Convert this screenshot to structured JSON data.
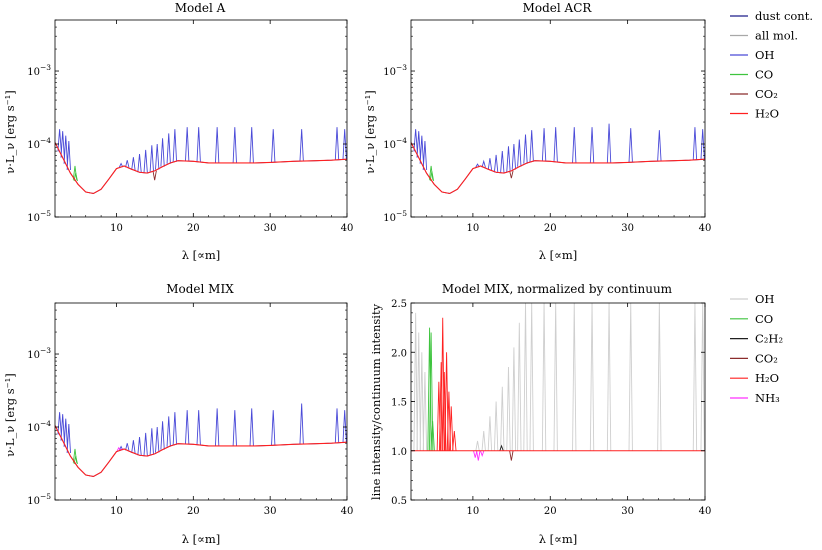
{
  "chart_data": [
    {
      "type": "line",
      "title": "Model A",
      "xlabel": "λ [∝m]",
      "ylabel": "ν·L_ν [erg s⁻¹]",
      "yscale": "log",
      "xlim": [
        2,
        40
      ],
      "ylim": [
        1e-05,
        0.005
      ],
      "x_ticks": [
        10,
        20,
        30,
        40
      ],
      "y_ticks": [
        1e-05,
        0.0001,
        0.001
      ],
      "y_tick_labels": [
        {
          "base": "10",
          "exp": "−5"
        },
        {
          "base": "10",
          "exp": "−4"
        },
        {
          "base": "10",
          "exp": "−3"
        }
      ],
      "series": [
        {
          "name": "dust cont.",
          "color": "#1f1f8a",
          "x": [
            2,
            3,
            4,
            5,
            6,
            7,
            8,
            9,
            10,
            11,
            12,
            13,
            14,
            15,
            16,
            17,
            18,
            20,
            22,
            25,
            28,
            30,
            33,
            36,
            38,
            40
          ],
          "y": [
            0.000105,
            6.5e-05,
            4e-05,
            2.8e-05,
            2.2e-05,
            2.1e-05,
            2.4e-05,
            3.3e-05,
            4.6e-05,
            5e-05,
            4.5e-05,
            4.1e-05,
            4e-05,
            4.3e-05,
            4.9e-05,
            5.5e-05,
            5.9e-05,
            5.8e-05,
            5.5e-05,
            5.5e-05,
            5.5e-05,
            5.6e-05,
            5.8e-05,
            5.9e-05,
            6e-05,
            6.2e-05
          ]
        },
        {
          "name": "all mol.",
          "color": "#a8a8a8",
          "x": [],
          "y": []
        },
        {
          "name": "OH",
          "color": "#4a4ad8",
          "peaks_x": [
            2.6,
            3.0,
            3.4,
            3.8,
            10.6,
            11.4,
            12.2,
            13.0,
            13.8,
            14.6,
            15.3,
            16.0,
            16.8,
            17.6,
            19.2,
            20.7,
            23.1,
            25.4,
            27.6,
            30.4,
            34.1,
            38.7,
            39.7
          ],
          "peaks_y": [
            0.00016,
            0.00015,
            0.00013,
            0.00011,
            5.4e-05,
            6e-05,
            6.6e-05,
            7.3e-05,
            8.3e-05,
            9.6e-05,
            0.0001,
            0.00012,
            0.00014,
            0.00016,
            0.00017,
            0.00017,
            0.00017,
            0.00017,
            0.00017,
            0.00016,
            0.00016,
            0.00017,
            0.00016
          ]
        },
        {
          "name": "CO",
          "color": "#3ec43e",
          "peaks_x": [
            4.6,
            4.7
          ],
          "peaks_y": [
            5e-05,
            4e-05
          ]
        },
        {
          "name": "CO₂",
          "color": "#8b2c2c",
          "peaks_x": [
            14.97
          ],
          "peaks_y": [
            3.2e-05
          ]
        },
        {
          "name": "H₂O",
          "color": "#ff2020",
          "x": [
            2,
            3,
            4,
            5,
            6,
            7,
            8,
            9,
            10,
            11,
            12,
            13,
            14,
            15,
            16,
            17,
            18,
            20,
            22,
            25,
            28,
            30,
            33,
            36,
            38,
            40
          ],
          "y": [
            0.000105,
            6.5e-05,
            4e-05,
            2.8e-05,
            2.2e-05,
            2.1e-05,
            2.4e-05,
            3.3e-05,
            4.6e-05,
            5e-05,
            4.5e-05,
            4.1e-05,
            4e-05,
            4.3e-05,
            4.9e-05,
            5.5e-05,
            5.9e-05,
            5.8e-05,
            5.5e-05,
            5.5e-05,
            5.5e-05,
            5.6e-05,
            5.8e-05,
            5.9e-05,
            6e-05,
            6.2e-05
          ]
        }
      ]
    },
    {
      "type": "line",
      "title": "Model ACR",
      "xlabel": "λ [∝m]",
      "ylabel": "ν·L_ν [erg s⁻¹]",
      "yscale": "log",
      "xlim": [
        2,
        40
      ],
      "ylim": [
        1e-05,
        0.005
      ],
      "x_ticks": [
        10,
        20,
        30,
        40
      ],
      "y_ticks": [
        1e-05,
        0.0001,
        0.001
      ],
      "y_tick_labels": [
        {
          "base": "10",
          "exp": "−5"
        },
        {
          "base": "10",
          "exp": "−4"
        },
        {
          "base": "10",
          "exp": "−3"
        }
      ],
      "series": [
        {
          "name": "dust cont.",
          "color": "#1f1f8a",
          "x": [
            2,
            3,
            4,
            5,
            6,
            7,
            8,
            9,
            10,
            11,
            12,
            13,
            14,
            15,
            16,
            17,
            18,
            20,
            22,
            25,
            28,
            30,
            33,
            36,
            38,
            40
          ],
          "y": [
            0.000105,
            6.5e-05,
            4e-05,
            2.8e-05,
            2.2e-05,
            2.1e-05,
            2.4e-05,
            3.3e-05,
            4.6e-05,
            5e-05,
            4.5e-05,
            4.1e-05,
            4e-05,
            4.3e-05,
            4.9e-05,
            5.5e-05,
            5.9e-05,
            5.8e-05,
            5.5e-05,
            5.5e-05,
            5.5e-05,
            5.6e-05,
            5.8e-05,
            5.9e-05,
            6e-05,
            6.2e-05
          ]
        },
        {
          "name": "OH",
          "color": "#4a4ad8",
          "peaks_x": [
            2.6,
            3.0,
            3.4,
            3.8,
            10.6,
            11.4,
            12.2,
            13.0,
            13.8,
            14.6,
            15.3,
            16.0,
            16.8,
            17.6,
            19.2,
            20.7,
            23.1,
            25.4,
            27.6,
            30.4,
            34.1,
            38.7,
            39.7
          ],
          "peaks_y": [
            0.00016,
            0.00015,
            0.00013,
            0.00011,
            5.3e-05,
            5.8e-05,
            6.4e-05,
            7.1e-05,
            8e-05,
            9.3e-05,
            0.0001,
            0.000115,
            0.000135,
            0.000155,
            0.000165,
            0.00017,
            0.00017,
            0.00017,
            0.00019,
            0.000165,
            0.000155,
            0.00017,
            0.00016
          ]
        },
        {
          "name": "CO",
          "color": "#3ec43e",
          "peaks_x": [
            4.6,
            4.7
          ],
          "peaks_y": [
            5e-05,
            4.2e-05
          ]
        },
        {
          "name": "CO₂",
          "color": "#8b2c2c",
          "peaks_x": [
            14.97
          ],
          "peaks_y": [
            3.4e-05
          ]
        },
        {
          "name": "H₂O",
          "color": "#ff2020",
          "x": [
            2,
            3,
            4,
            5,
            6,
            7,
            8,
            9,
            10,
            11,
            12,
            13,
            14,
            15,
            16,
            17,
            18,
            20,
            22,
            25,
            28,
            30,
            33,
            36,
            38,
            40
          ],
          "y": [
            0.000105,
            6.5e-05,
            4e-05,
            2.8e-05,
            2.2e-05,
            2.1e-05,
            2.4e-05,
            3.3e-05,
            4.6e-05,
            5e-05,
            4.5e-05,
            4.1e-05,
            4e-05,
            4.3e-05,
            4.9e-05,
            5.5e-05,
            5.9e-05,
            5.8e-05,
            5.5e-05,
            5.5e-05,
            5.5e-05,
            5.6e-05,
            5.8e-05,
            5.9e-05,
            6e-05,
            6.2e-05
          ]
        }
      ]
    },
    {
      "type": "line",
      "title": "Model MIX",
      "xlabel": "λ [∝m]",
      "ylabel": "ν·L_ν [erg s⁻¹]",
      "yscale": "log",
      "xlim": [
        2,
        40
      ],
      "ylim": [
        1e-05,
        0.005
      ],
      "x_ticks": [
        10,
        20,
        30,
        40
      ],
      "y_ticks": [
        1e-05,
        0.0001,
        0.001
      ],
      "y_tick_labels": [
        {
          "base": "10",
          "exp": "−5"
        },
        {
          "base": "10",
          "exp": "−4"
        },
        {
          "base": "10",
          "exp": "−3"
        }
      ],
      "series": [
        {
          "name": "dust cont.",
          "color": "#1f1f8a",
          "x": [
            2,
            3,
            4,
            5,
            6,
            7,
            8,
            9,
            10,
            11,
            12,
            13,
            14,
            15,
            16,
            17,
            18,
            20,
            22,
            25,
            28,
            30,
            33,
            36,
            38,
            40
          ],
          "y": [
            0.000105,
            6.5e-05,
            4e-05,
            2.8e-05,
            2.2e-05,
            2.1e-05,
            2.4e-05,
            3.3e-05,
            4.6e-05,
            5e-05,
            4.5e-05,
            4.1e-05,
            4e-05,
            4.3e-05,
            4.9e-05,
            5.5e-05,
            5.9e-05,
            5.8e-05,
            5.5e-05,
            5.5e-05,
            5.5e-05,
            5.6e-05,
            5.8e-05,
            5.9e-05,
            6e-05,
            6.2e-05
          ]
        },
        {
          "name": "OH",
          "color": "#4a4ad8",
          "peaks_x": [
            2.6,
            3.0,
            3.4,
            3.8,
            10.6,
            11.4,
            12.2,
            13.0,
            13.8,
            14.6,
            15.3,
            16.0,
            16.8,
            17.6,
            19.2,
            20.7,
            23.1,
            25.4,
            27.6,
            30.4,
            34.1,
            38.7,
            39.7
          ],
          "peaks_y": [
            0.00016,
            0.00015,
            0.00013,
            0.00011,
            5.4e-05,
            6e-05,
            6.6e-05,
            7.3e-05,
            8.3e-05,
            9.6e-05,
            0.0001,
            0.00012,
            0.00014,
            0.00016,
            0.00017,
            0.00017,
            0.00018,
            0.00017,
            0.00018,
            0.00017,
            0.00021,
            0.00018,
            0.00017
          ]
        },
        {
          "name": "CO",
          "color": "#3ec43e",
          "peaks_x": [
            4.6,
            4.7
          ],
          "peaks_y": [
            5e-05,
            4e-05
          ]
        },
        {
          "name": "NH₃",
          "color": "#ff30ff",
          "peaks_x": [
            10.3,
            10.7
          ],
          "peaks_y": [
            5.2e-05,
            5e-05
          ]
        },
        {
          "name": "H₂O",
          "color": "#ff2020",
          "x": [
            2,
            3,
            4,
            5,
            6,
            7,
            8,
            9,
            10,
            11,
            12,
            13,
            14,
            15,
            16,
            17,
            18,
            20,
            22,
            25,
            28,
            30,
            33,
            36,
            38,
            40
          ],
          "y": [
            0.000105,
            6.5e-05,
            4e-05,
            2.8e-05,
            2.2e-05,
            2.1e-05,
            2.4e-05,
            3.3e-05,
            4.6e-05,
            5e-05,
            4.5e-05,
            4.1e-05,
            4e-05,
            4.3e-05,
            4.9e-05,
            5.5e-05,
            5.9e-05,
            5.8e-05,
            5.5e-05,
            5.5e-05,
            5.5e-05,
            5.6e-05,
            5.8e-05,
            5.9e-05,
            6e-05,
            6.2e-05
          ]
        }
      ]
    },
    {
      "type": "line",
      "title": "Model MIX, normalized by continuum",
      "xlabel": "λ [∝m]",
      "ylabel": "line intensity/continuum intensity",
      "yscale": "linear",
      "xlim": [
        2,
        40
      ],
      "ylim": [
        0.5,
        2.5
      ],
      "x_ticks": [
        10,
        20,
        30,
        40
      ],
      "y_ticks": [
        0.5,
        1.0,
        1.5,
        2.0,
        2.5
      ],
      "y_tick_labels": [
        "0.5",
        "1.0",
        "1.5",
        "2.0",
        "2.5"
      ],
      "series": [
        {
          "name": "OH",
          "color": "#cfcfcf",
          "peaks_x": [
            2.6,
            3.0,
            3.4,
            3.8,
            10.6,
            11.4,
            12.2,
            13.0,
            13.8,
            14.6,
            15.3,
            16.0,
            16.8,
            17.6,
            19.2,
            20.7,
            23.1,
            25.4,
            27.6,
            30.4,
            34.1,
            38.7,
            39.7
          ],
          "peaks_y": [
            2.4,
            2.2,
            2.0,
            1.8,
            1.1,
            1.2,
            1.35,
            1.5,
            1.65,
            1.85,
            2.05,
            2.3,
            2.5,
            2.5,
            2.5,
            2.5,
            2.5,
            2.5,
            2.5,
            2.5,
            2.5,
            2.5,
            2.5
          ]
        },
        {
          "name": "CO",
          "color": "#3ec43e",
          "peaks_x": [
            4.4,
            4.6,
            4.8
          ],
          "peaks_y": [
            2.25,
            2.2,
            1.3
          ]
        },
        {
          "name": "C₂H₂",
          "color": "#202020",
          "peaks_x": [
            13.7
          ],
          "peaks_y": [
            1.05
          ]
        },
        {
          "name": "CO₂",
          "color": "#8b2c2c",
          "peaks_x": [
            14.97
          ],
          "peaks_y": [
            0.9
          ]
        },
        {
          "name": "H₂O",
          "color": "#ff2020",
          "peaks_x": [
            5.6,
            5.9,
            6.1,
            6.3,
            6.6,
            6.9,
            7.2,
            7.6
          ],
          "peaks_y": [
            1.7,
            1.9,
            2.35,
            1.8,
            2.0,
            1.6,
            1.45,
            1.2
          ]
        },
        {
          "name": "NH₃",
          "color": "#ff30ff",
          "peaks_x": [
            10.3,
            10.7,
            11.2
          ],
          "peaks_y": [
            0.93,
            0.9,
            0.95
          ]
        }
      ]
    }
  ],
  "legend_top": [
    "dust cont.",
    "all mol.",
    "OH",
    "CO",
    "CO₂",
    "H₂O"
  ],
  "legend_bottom": [
    "OH",
    "CO",
    "C₂H₂",
    "CO₂",
    "H₂O",
    "NH₃"
  ]
}
